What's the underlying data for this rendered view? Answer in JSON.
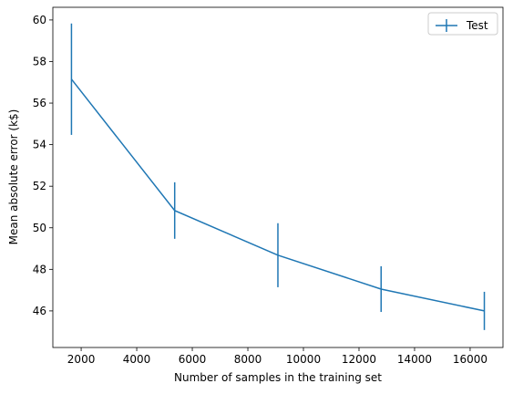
{
  "chart_data": {
    "type": "errorbar_line",
    "xlabel": "Number of samples in the training set",
    "ylabel": "Mean absolute error (k$)",
    "x": [
      1651,
      5366,
      9081,
      12796,
      16511
    ],
    "series": [
      {
        "name": "Test",
        "color": "#1f77b4",
        "values": [
          57.15,
          50.83,
          48.68,
          47.05,
          46.0
        ],
        "errors": [
          2.68,
          1.36,
          1.54,
          1.1,
          0.92
        ]
      }
    ],
    "xlim": [
      981,
      17182
    ],
    "ylim": [
      44.24,
      60.61
    ],
    "xticks": [
      2000,
      4000,
      6000,
      8000,
      10000,
      12000,
      14000,
      16000
    ],
    "yticks": [
      46,
      48,
      50,
      52,
      54,
      56,
      58,
      60
    ],
    "legend": "upper right"
  }
}
